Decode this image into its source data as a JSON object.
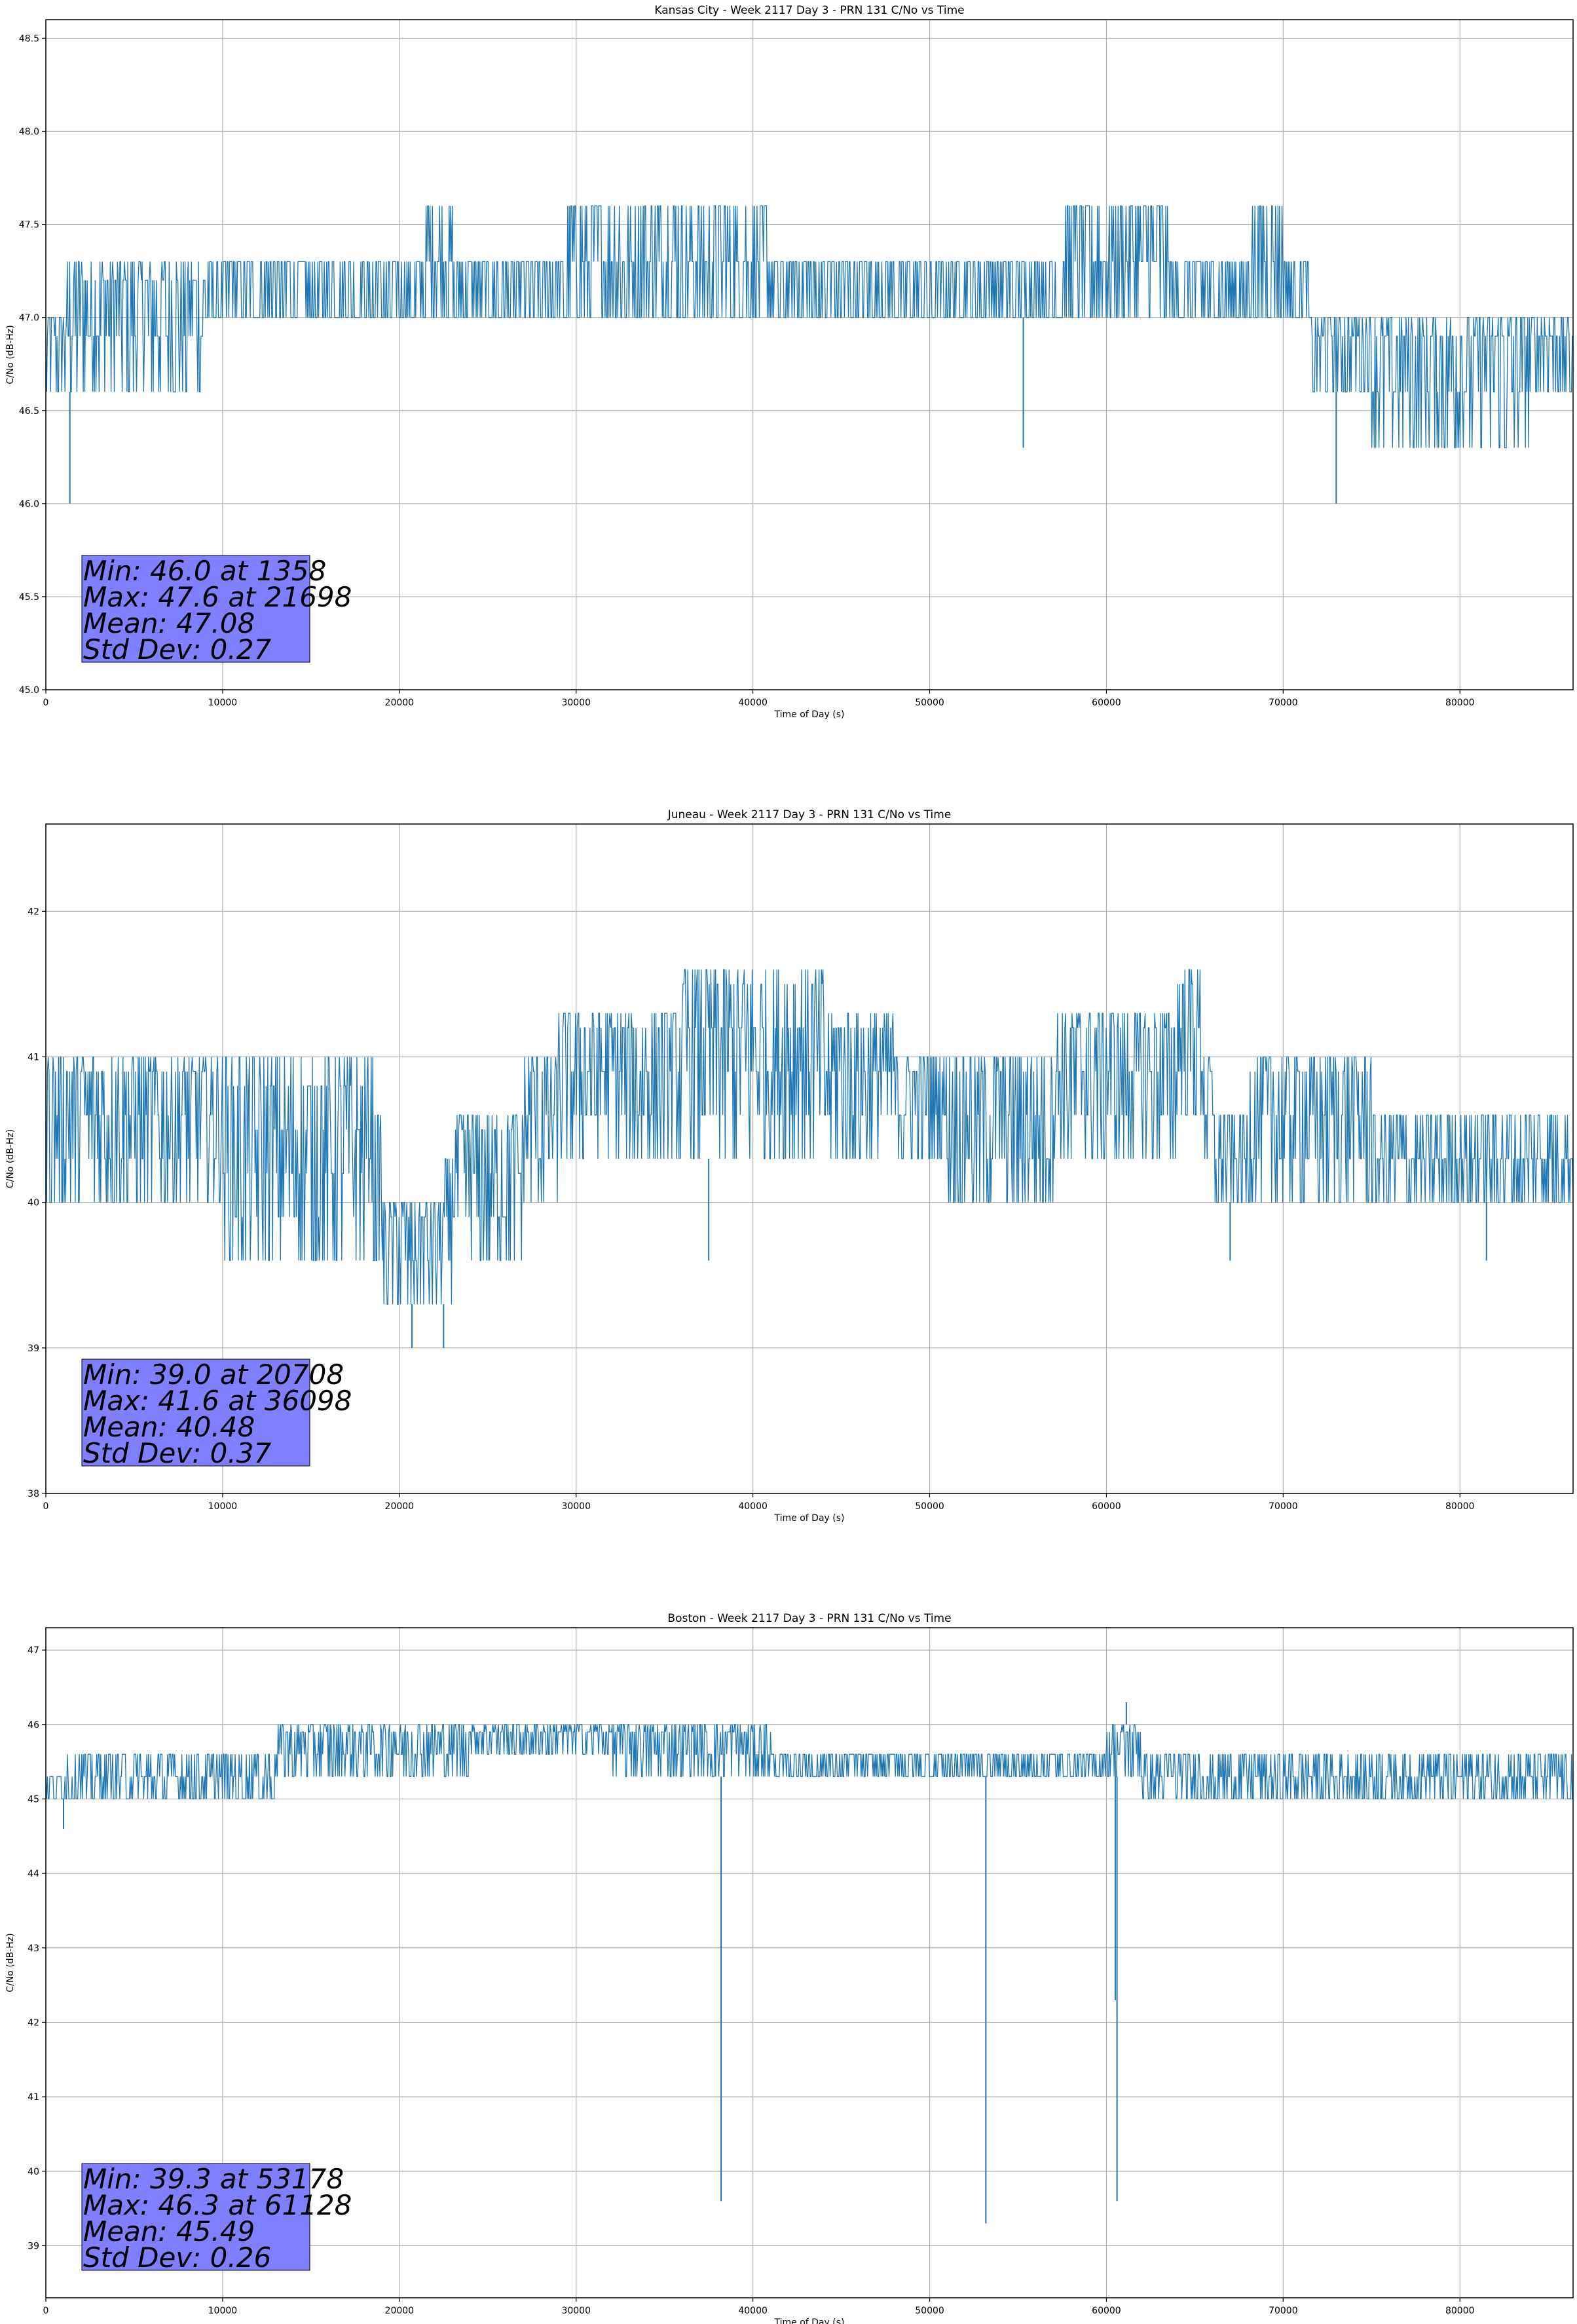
{
  "colors": {
    "line": "#1f77b4",
    "grid": "#b0b0b0",
    "statbox": "#7f7fff"
  },
  "chart_data": [
    {
      "type": "line",
      "title": "Kansas City - Week 2117 Day 3 - PRN 131 C/No vs Time",
      "xlabel": "Time of Day (s)",
      "ylabel": "C/No (dB-Hz)",
      "xlim": [
        0,
        86400
      ],
      "ylim": [
        45.0,
        48.6
      ],
      "xticks": [
        0,
        10000,
        20000,
        30000,
        40000,
        50000,
        60000,
        70000,
        80000
      ],
      "yticks": [
        45.0,
        45.5,
        46.0,
        46.5,
        47.0,
        47.5,
        48.0,
        48.5
      ],
      "ytick_decimals": 1,
      "grid": true,
      "series": [
        {
          "values_profile": [
            [
              0,
              46.6,
              47.0
            ],
            [
              1200,
              46.6,
              47.3
            ],
            [
              3000,
              46.6,
              47.3
            ],
            [
              8000,
              46.6,
              47.3
            ],
            [
              9000,
              47.0,
              47.3
            ],
            [
              17000,
              47.0,
              47.3
            ],
            [
              21500,
              47.0,
              47.6
            ],
            [
              23000,
              47.0,
              47.3
            ],
            [
              29500,
              47.0,
              47.6
            ],
            [
              31000,
              47.0,
              47.6
            ],
            [
              39000,
              47.0,
              47.6
            ],
            [
              41000,
              47.0,
              47.3
            ],
            [
              57000,
              47.0,
              47.3
            ],
            [
              57500,
              47.0,
              47.6
            ],
            [
              63500,
              47.0,
              47.3
            ],
            [
              68000,
              47.0,
              47.6
            ],
            [
              70000,
              47.0,
              47.3
            ],
            [
              71500,
              46.6,
              47.0
            ],
            [
              75000,
              46.3,
              47.0
            ],
            [
              83000,
              46.3,
              47.0
            ],
            [
              84000,
              46.6,
              47.0
            ],
            [
              86400,
              46.6,
              47.0
            ]
          ],
          "spikes": [
            [
              1358,
              46.0
            ],
            [
              55300,
              46.3
            ],
            [
              73000,
              46.0
            ]
          ]
        }
      ],
      "stats": {
        "min": "Min: 46.0 at 1358",
        "max": "Max: 47.6 at 21698",
        "mean": "Mean: 47.08",
        "std": "Std Dev: 0.27"
      }
    },
    {
      "type": "line",
      "title": "Juneau - Week 2117 Day 3 - PRN 131 C/No vs Time",
      "xlabel": "Time of Day (s)",
      "ylabel": "C/No (dB-Hz)",
      "xlim": [
        0,
        86400
      ],
      "ylim": [
        38.0,
        42.6
      ],
      "xticks": [
        0,
        10000,
        20000,
        30000,
        40000,
        50000,
        60000,
        70000,
        80000
      ],
      "yticks": [
        38,
        39,
        40,
        41,
        42
      ],
      "ytick_decimals": 0,
      "grid": true,
      "series": [
        {
          "values_profile": [
            [
              0,
              40.0,
              41.0
            ],
            [
              10000,
              39.6,
              41.0
            ],
            [
              18000,
              40.0,
              41.0
            ],
            [
              18500,
              39.6,
              40.6
            ],
            [
              19000,
              39.3,
              40.0
            ],
            [
              22500,
              39.3,
              40.3
            ],
            [
              23000,
              39.6,
              40.6
            ],
            [
              26000,
              39.6,
              40.6
            ],
            [
              27000,
              40.0,
              41.0
            ],
            [
              29000,
              40.3,
              41.3
            ],
            [
              31000,
              40.3,
              41.3
            ],
            [
              35000,
              40.3,
              41.3
            ],
            [
              36000,
              40.3,
              41.6
            ],
            [
              44000,
              40.3,
              41.3
            ],
            [
              48000,
              40.3,
              41.0
            ],
            [
              51000,
              40.0,
              41.0
            ],
            [
              55000,
              40.0,
              41.0
            ],
            [
              57000,
              40.3,
              41.3
            ],
            [
              63000,
              40.3,
              41.3
            ],
            [
              64000,
              40.6,
              41.6
            ],
            [
              65500,
              40.3,
              41.0
            ],
            [
              66000,
              40.0,
              40.6
            ],
            [
              68000,
              40.0,
              41.0
            ],
            [
              75000,
              40.0,
              40.6
            ],
            [
              86400,
              40.0,
              40.6
            ]
          ],
          "spikes": [
            [
              20708,
              39.0
            ],
            [
              22500,
              39.0
            ],
            [
              37500,
              39.6
            ],
            [
              67000,
              39.6
            ],
            [
              81500,
              39.6
            ]
          ]
        }
      ],
      "stats": {
        "min": "Min: 39.0 at 20708",
        "max": "Max: 41.6 at 36098",
        "mean": "Mean: 40.48",
        "std": "Std Dev: 0.37"
      }
    },
    {
      "type": "line",
      "title": "Boston - Week 2117 Day 3 - PRN 131 C/No vs Time",
      "xlabel": "Time of Day (s)",
      "ylabel": "C/No (dB-Hz)",
      "xlim": [
        0,
        86400
      ],
      "ylim": [
        38.3,
        47.3
      ],
      "xticks": [
        0,
        10000,
        20000,
        30000,
        40000,
        50000,
        60000,
        70000,
        80000
      ],
      "yticks": [
        39,
        40,
        41,
        42,
        43,
        44,
        45,
        46,
        47
      ],
      "ytick_decimals": 0,
      "grid": true,
      "series": [
        {
          "values_profile": [
            [
              0,
              45.0,
              45.3
            ],
            [
              1000,
              45.0,
              45.6
            ],
            [
              6000,
              45.0,
              45.6
            ],
            [
              12000,
              45.0,
              45.6
            ],
            [
              13000,
              45.3,
              46.0
            ],
            [
              20000,
              45.3,
              46.0
            ],
            [
              21000,
              45.3,
              46.0
            ],
            [
              24000,
              45.6,
              46.0
            ],
            [
              32000,
              45.3,
              46.0
            ],
            [
              40000,
              45.3,
              46.0
            ],
            [
              41000,
              45.3,
              45.6
            ],
            [
              60000,
              45.3,
              46.0
            ],
            [
              62000,
              45.0,
              45.6
            ],
            [
              86400,
              45.0,
              45.6
            ]
          ],
          "spikes": [
            [
              1000,
              44.6
            ],
            [
              38200,
              39.6
            ],
            [
              53178,
              39.3
            ],
            [
              60500,
              42.3
            ],
            [
              60600,
              39.6
            ],
            [
              61128,
              46.3
            ]
          ]
        }
      ],
      "stats": {
        "min": "Min: 39.3 at 53178",
        "max": "Max: 46.3 at 61128",
        "mean": "Mean: 45.49",
        "std": "Std Dev: 0.26"
      }
    }
  ]
}
